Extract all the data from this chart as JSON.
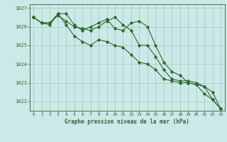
{
  "x": [
    0,
    1,
    2,
    3,
    4,
    5,
    6,
    7,
    8,
    9,
    10,
    11,
    12,
    13,
    14,
    15,
    16,
    17,
    18,
    19,
    20,
    21,
    22,
    23
  ],
  "series1": [
    1026.5,
    1026.2,
    1026.2,
    1026.6,
    1026.3,
    1026.0,
    1025.9,
    1025.8,
    1026.0,
    1026.3,
    1026.5,
    1026.1,
    1025.8,
    1025.0,
    1025.0,
    1024.4,
    1023.7,
    1023.2,
    1023.1,
    1023.1,
    1023.0,
    1022.8,
    1022.1,
    1021.6
  ],
  "series2": [
    1026.5,
    1026.2,
    1026.2,
    1026.7,
    1026.7,
    1026.1,
    1025.8,
    1026.0,
    1026.2,
    1026.4,
    1025.9,
    1025.8,
    1026.2,
    1026.3,
    1026.0,
    1025.0,
    1024.1,
    1023.6,
    1023.4,
    1023.0,
    1022.9,
    1022.8,
    1022.5,
    1021.6
  ],
  "series3": [
    1026.5,
    1026.2,
    1026.1,
    1026.7,
    1026.1,
    1025.5,
    1025.2,
    1025.0,
    1025.3,
    1025.2,
    1025.0,
    1024.9,
    1024.5,
    1024.1,
    1024.0,
    1023.7,
    1023.2,
    1023.1,
    1023.0,
    1023.0,
    1022.9,
    1022.4,
    1022.1,
    1021.6
  ],
  "line_color": "#2d6a2d",
  "bg_color": "#cce8e8",
  "grid_color": "#99ccbb",
  "xlabel": "Graphe pression niveau de la mer (hPa)",
  "ylim_min": 1021.5,
  "ylim_max": 1027.2,
  "xlim_min": -0.5,
  "xlim_max": 23.5,
  "yticks": [
    1022,
    1023,
    1024,
    1025,
    1026,
    1027
  ],
  "xticks": [
    0,
    1,
    2,
    3,
    4,
    5,
    6,
    7,
    8,
    9,
    10,
    11,
    12,
    13,
    14,
    15,
    16,
    17,
    18,
    19,
    20,
    21,
    22,
    23
  ]
}
